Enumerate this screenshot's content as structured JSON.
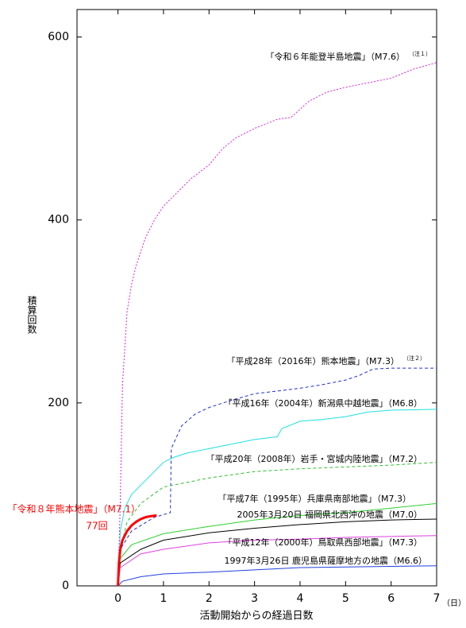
{
  "chart_data": {
    "type": "line",
    "x_label": "活動開始からの経過日数",
    "x_unit": "（日）",
    "y_label": "積算回数",
    "xlim": [
      -0.9,
      7
    ],
    "ylim": [
      0,
      630
    ],
    "xticks": [
      0,
      1,
      2,
      3,
      4,
      5,
      6,
      7
    ],
    "yticks": [
      0,
      200,
      400,
      600
    ],
    "series": [
      {
        "name": "「令和６年能登半島地震」（M7.6）",
        "note": "（注１）",
        "color": "#e020e0",
        "dash": "dotted",
        "x": [
          0,
          0.05,
          0.1,
          0.2,
          0.3,
          0.4,
          0.6,
          0.8,
          1.0,
          1.3,
          1.6,
          2.0,
          2.3,
          2.6,
          3.0,
          3.5,
          3.8,
          4.2,
          4.6,
          5.0,
          5.5,
          6.0,
          6.5,
          7.0
        ],
        "values": [
          0,
          90,
          220,
          300,
          330,
          350,
          380,
          400,
          415,
          430,
          445,
          460,
          478,
          490,
          500,
          510,
          512,
          530,
          540,
          545,
          550,
          555,
          565,
          572
        ]
      },
      {
        "name": "「平成28年（2016年）熊本地震」（M7.3）",
        "note": "（注２）",
        "color": "#2030d0",
        "dash": "dashed",
        "x": [
          0,
          0.05,
          0.3,
          0.8,
          1.15,
          1.17,
          1.4,
          1.7,
          2.0,
          2.5,
          3.0,
          3.5,
          4.0,
          4.5,
          5.0,
          5.3,
          5.6,
          6.0,
          7.0
        ],
        "values": [
          0,
          40,
          60,
          75,
          80,
          150,
          175,
          188,
          195,
          203,
          210,
          213,
          216,
          220,
          225,
          230,
          237,
          238,
          238
        ]
      },
      {
        "name": "「平成16年（2004年）新潟県中越地震」（M6.8）",
        "color": "#20e0e0",
        "dash": "solid",
        "x": [
          0,
          0.05,
          0.15,
          0.3,
          0.6,
          1.0,
          1.2,
          1.5,
          2.0,
          2.5,
          3.0,
          3.5,
          3.6,
          4.0,
          4.5,
          5.0,
          5.5,
          6.0,
          7.0
        ],
        "values": [
          0,
          60,
          85,
          100,
          115,
          135,
          140,
          145,
          150,
          155,
          160,
          163,
          172,
          180,
          182,
          185,
          190,
          192,
          193
        ]
      },
      {
        "name": "「平成20年（2008年）岩手・宮城内陸地震」（M7.2）",
        "color": "#30c030",
        "dash": "dashed",
        "x": [
          0,
          0.05,
          0.2,
          0.5,
          1.0,
          1.5,
          2.0,
          3.0,
          4.0,
          5.0,
          6.0,
          7.0
        ],
        "values": [
          0,
          40,
          70,
          90,
          108,
          113,
          118,
          125,
          128,
          130,
          132,
          135
        ]
      },
      {
        "name": "「平成7年（1995年）兵庫県南部地震」（M7.3）",
        "color": "#30d030",
        "dash": "solid",
        "x": [
          0,
          0.05,
          0.3,
          1.0,
          2.0,
          3.0,
          4.0,
          5.0,
          6.0,
          7.0
        ],
        "values": [
          0,
          30,
          45,
          57,
          65,
          72,
          77,
          80,
          85,
          90
        ]
      },
      {
        "name": "2005年3月20日 福岡県北西沖の地震（M7.0）",
        "color": "#000000",
        "dash": "solid",
        "x": [
          0,
          0.05,
          0.5,
          1.0,
          2.0,
          3.0,
          4.0,
          5.0,
          6.0,
          7.0
        ],
        "values": [
          0,
          25,
          40,
          50,
          58,
          63,
          67,
          70,
          72,
          73
        ]
      },
      {
        "name": "「平成12年（2000年）鳥取県西部地震」（M7.3）",
        "color": "#e040e0",
        "dash": "solid",
        "x": [
          0,
          0.05,
          0.5,
          1.0,
          2.0,
          3.0,
          4.0,
          5.0,
          7.0
        ],
        "values": [
          0,
          20,
          35,
          40,
          47,
          50,
          51,
          53,
          55
        ]
      },
      {
        "name": "1997年3月26日 鹿児島県薩摩地方の地震（M6.6）",
        "color": "#2040e0",
        "dash": "solid",
        "x": [
          0,
          0.1,
          0.5,
          1.0,
          2.0,
          4.0,
          7.0
        ],
        "values": [
          0,
          5,
          10,
          13,
          15,
          20,
          22
        ]
      },
      {
        "name": "「令和８年熊本地震」（M7.1）",
        "color": "#ff0000",
        "dash": "solid",
        "annotation": "77回",
        "x": [
          0,
          0.02,
          0.05,
          0.1,
          0.2,
          0.3,
          0.4,
          0.5,
          0.6,
          0.7,
          0.85
        ],
        "values": [
          0,
          25,
          40,
          50,
          60,
          66,
          70,
          73,
          75,
          76,
          77
        ]
      }
    ]
  }
}
